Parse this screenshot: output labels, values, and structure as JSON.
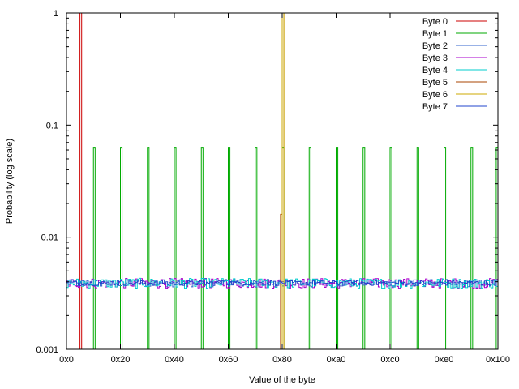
{
  "chart_data": {
    "type": "line",
    "xlabel": "Value of the byte",
    "ylabel": "Probability (log scale)",
    "y_scale": "log",
    "ylim": [
      0.001,
      1
    ],
    "xlim": [
      0,
      256
    ],
    "x_ticks": [
      {
        "value": 0,
        "label": "0x0"
      },
      {
        "value": 32,
        "label": "0x20"
      },
      {
        "value": 64,
        "label": "0x40"
      },
      {
        "value": 96,
        "label": "0x60"
      },
      {
        "value": 128,
        "label": "0x80"
      },
      {
        "value": 160,
        "label": "0xa0"
      },
      {
        "value": 192,
        "label": "0xc0"
      },
      {
        "value": 224,
        "label": "0xe0"
      },
      {
        "value": 256,
        "label": "0x100"
      }
    ],
    "y_ticks": [
      {
        "value": 1,
        "label": "1"
      },
      {
        "value": 0.1,
        "label": "0.1"
      },
      {
        "value": 0.01,
        "label": "0.01"
      },
      {
        "value": 0.001,
        "label": "0.001"
      }
    ],
    "legend_position": "top-right",
    "grid": false,
    "series": [
      {
        "name": "Byte 0",
        "color": "#cc0000",
        "kind": "spikes",
        "baseline": 0.001,
        "points": [
          [
            8,
            1
          ]
        ]
      },
      {
        "name": "Byte 1",
        "color": "#00aa00",
        "kind": "spikes",
        "baseline": 0.001,
        "points": [
          [
            8,
            0.001
          ],
          [
            16,
            0.0625
          ],
          [
            32,
            0.0625
          ],
          [
            48,
            0.0625
          ],
          [
            64,
            0.0625
          ],
          [
            80,
            0.0625
          ],
          [
            96,
            0.0625
          ],
          [
            112,
            0.0625
          ],
          [
            128,
            0.0625
          ],
          [
            144,
            0.0625
          ],
          [
            160,
            0.0625
          ],
          [
            176,
            0.0625
          ],
          [
            192,
            0.0625
          ],
          [
            208,
            0.0625
          ],
          [
            224,
            0.0625
          ],
          [
            240,
            0.0625
          ],
          [
            255,
            0.0625
          ]
        ]
      },
      {
        "name": "Byte 2",
        "color": "#3366cc",
        "kind": "noise",
        "level": 0.0039,
        "spread": 0.0003
      },
      {
        "name": "Byte 3",
        "color": "#aa00cc",
        "kind": "noise",
        "level": 0.0039,
        "spread": 0.0004
      },
      {
        "name": "Byte 4",
        "color": "#00cccc",
        "kind": "noise",
        "level": 0.0039,
        "spread": 0.0004
      },
      {
        "name": "Byte 5",
        "color": "#aa4400",
        "kind": "spikes",
        "baseline": 0.001,
        "points": [
          [
            127,
            0.016
          ],
          [
            128,
            1
          ]
        ]
      },
      {
        "name": "Byte 6",
        "color": "#ccaa00",
        "kind": "spikes",
        "baseline": 0.001,
        "points": [
          [
            128,
            1
          ]
        ]
      },
      {
        "name": "Byte 7",
        "color": "#2244cc",
        "kind": "noise",
        "level": 0.0039,
        "spread": 0.0002
      }
    ]
  }
}
